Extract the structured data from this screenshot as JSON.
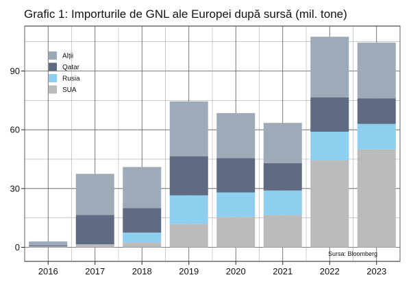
{
  "chart_data": {
    "type": "bar",
    "stacked": true,
    "title": "Grafic 1: Importurile de GNL ale Europei după sursă (mil. tone)",
    "xlabel": "",
    "ylabel": "",
    "categories": [
      "2016",
      "2017",
      "2018",
      "2019",
      "2020",
      "2021",
      "2022",
      "2023"
    ],
    "yticks": [
      0,
      30,
      60,
      90
    ],
    "ylim": [
      -3,
      110
    ],
    "grid": true,
    "legend_position": "top-left",
    "source": "Sursa: Bloomberg",
    "series": [
      {
        "name": "SUA",
        "color": "#bbbbbb",
        "values": [
          0.5,
          1.5,
          2.5,
          12,
          15.5,
          16.5,
          44.5,
          50
        ]
      },
      {
        "name": "Rusia",
        "color": "#8ecff0",
        "values": [
          0,
          0,
          5,
          14.5,
          12.5,
          12.5,
          14.5,
          13
        ]
      },
      {
        "name": "Qatar",
        "color": "#5e6b82",
        "values": [
          0.5,
          15,
          12.5,
          20,
          17.5,
          14,
          17.5,
          13
        ]
      },
      {
        "name": "Alții",
        "color": "#9dabb8",
        "values": [
          2,
          21,
          21,
          28,
          23,
          20.5,
          31,
          28.5
        ]
      }
    ]
  }
}
